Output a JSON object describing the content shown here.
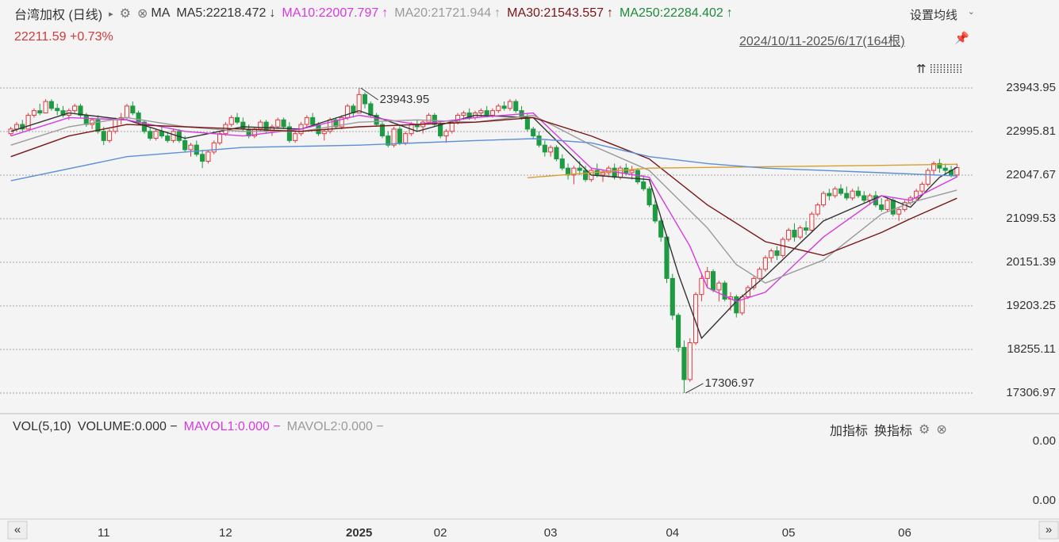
{
  "header": {
    "title": "台湾加权 (日线)",
    "indicator": "MA",
    "settings": "设置均线",
    "price": "22211.59 +0.73%",
    "range": "2024/10/11-2025/6/17(164根)"
  },
  "chart_data": {
    "type": "candlestick",
    "up_color": "#e0393e",
    "down_color": "#1e9a42",
    "xlim": [
      -0.5,
      163.5
    ],
    "xticks": [
      {
        "value": 16,
        "label": "11"
      },
      {
        "value": 37,
        "label": "12"
      },
      {
        "value": 60,
        "label": "2025"
      },
      {
        "value": 74,
        "label": "02"
      },
      {
        "value": 93,
        "label": "03"
      },
      {
        "value": 114,
        "label": "04"
      },
      {
        "value": 134,
        "label": "05"
      },
      {
        "value": 154,
        "label": "06"
      }
    ],
    "ylim": [
      16893.2,
      24823.2
    ],
    "yticks": [
      23943.95,
      22995.81,
      22047.67,
      21099.53,
      20151.39,
      19203.25,
      18255.11,
      17306.97
    ],
    "grid": true,
    "ohlc": [
      [
        22950,
        23100,
        22900,
        23050
      ],
      [
        23050,
        23200,
        23000,
        23150
      ],
      [
        23150,
        23250,
        23000,
        23050
      ],
      [
        23050,
        23400,
        23050,
        23350
      ],
      [
        23350,
        23500,
        23300,
        23450
      ],
      [
        23450,
        23600,
        23350,
        23400
      ],
      [
        23400,
        23700,
        23400,
        23650
      ],
      [
        23650,
        23700,
        23450,
        23500
      ],
      [
        23500,
        23600,
        23350,
        23450
      ],
      [
        23450,
        23550,
        23300,
        23350
      ],
      [
        23350,
        23500,
        23250,
        23450
      ],
      [
        23450,
        23600,
        23400,
        23550
      ],
      [
        23550,
        23600,
        23300,
        23350
      ],
      [
        23350,
        23400,
        23100,
        23150
      ],
      [
        23150,
        23300,
        23050,
        23250
      ],
      [
        23250,
        23350,
        22950,
        23000
      ],
      [
        23000,
        23100,
        22700,
        22800
      ],
      [
        22800,
        23050,
        22750,
        23000
      ],
      [
        23000,
        23300,
        22950,
        23250
      ],
      [
        23250,
        23400,
        23150,
        23300
      ],
      [
        23300,
        23600,
        23250,
        23550
      ],
      [
        23550,
        23650,
        23350,
        23400
      ],
      [
        23400,
        23450,
        23150,
        23200
      ],
      [
        23200,
        23250,
        22950,
        23000
      ],
      [
        23000,
        23100,
        22800,
        22850
      ],
      [
        22850,
        23050,
        22800,
        23000
      ],
      [
        23000,
        23100,
        22850,
        22900
      ],
      [
        22900,
        23000,
        22750,
        22800
      ],
      [
        22800,
        23050,
        22750,
        23000
      ],
      [
        23000,
        23050,
        22750,
        22800
      ],
      [
        22800,
        22900,
        22550,
        22600
      ],
      [
        22600,
        22750,
        22450,
        22700
      ],
      [
        22700,
        22800,
        22450,
        22500
      ],
      [
        22500,
        22600,
        22200,
        22350
      ],
      [
        22350,
        22600,
        22300,
        22550
      ],
      [
        22550,
        22800,
        22500,
        22750
      ],
      [
        22750,
        23000,
        22700,
        22950
      ],
      [
        22950,
        23200,
        22900,
        23150
      ],
      [
        23150,
        23350,
        23100,
        23300
      ],
      [
        23300,
        23400,
        23150,
        23200
      ],
      [
        23200,
        23300,
        23000,
        23050
      ],
      [
        23050,
        23150,
        22850,
        22900
      ],
      [
        22900,
        23100,
        22850,
        23050
      ],
      [
        23050,
        23250,
        23000,
        23200
      ],
      [
        23200,
        23250,
        22950,
        23000
      ],
      [
        23000,
        23150,
        22900,
        23100
      ],
      [
        23100,
        23300,
        23050,
        23250
      ],
      [
        23250,
        23300,
        23050,
        23100
      ],
      [
        23100,
        23200,
        22750,
        22800
      ],
      [
        22800,
        23000,
        22750,
        22950
      ],
      [
        22950,
        23200,
        22900,
        23150
      ],
      [
        23150,
        23350,
        23100,
        23300
      ],
      [
        23300,
        23400,
        23100,
        23150
      ],
      [
        23150,
        23200,
        22900,
        22950
      ],
      [
        22950,
        23050,
        22800,
        23000
      ],
      [
        23000,
        23300,
        22950,
        23250
      ],
      [
        23250,
        23300,
        23050,
        23100
      ],
      [
        23100,
        23350,
        23050,
        23300
      ],
      [
        23300,
        23600,
        23250,
        23550
      ],
      [
        23550,
        23600,
        23300,
        23400
      ],
      [
        23400,
        23943.95,
        23400,
        23800
      ],
      [
        23800,
        23850,
        23500,
        23600
      ],
      [
        23600,
        23650,
        23300,
        23350
      ],
      [
        23350,
        23400,
        23100,
        23150
      ],
      [
        23150,
        23200,
        22850,
        22900
      ],
      [
        22900,
        23000,
        22650,
        22700
      ],
      [
        22700,
        23100,
        22650,
        23050
      ],
      [
        23050,
        23150,
        22700,
        22750
      ],
      [
        22750,
        23000,
        22700,
        22950
      ],
      [
        22950,
        23200,
        22900,
        23150
      ],
      [
        23150,
        23250,
        23000,
        23100
      ],
      [
        23100,
        23250,
        22950,
        23200
      ],
      [
        23200,
        23400,
        23150,
        23350
      ],
      [
        23350,
        23400,
        23100,
        23150
      ],
      [
        23150,
        23200,
        22850,
        22900
      ],
      [
        22900,
        23050,
        22750,
        23000
      ],
      [
        23000,
        23250,
        22950,
        23200
      ],
      [
        23200,
        23400,
        23150,
        23350
      ],
      [
        23350,
        23450,
        23250,
        23400
      ],
      [
        23400,
        23500,
        23250,
        23300
      ],
      [
        23300,
        23450,
        23250,
        23400
      ],
      [
        23400,
        23500,
        23300,
        23450
      ],
      [
        23450,
        23550,
        23300,
        23350
      ],
      [
        23350,
        23500,
        23300,
        23450
      ],
      [
        23450,
        23600,
        23400,
        23550
      ],
      [
        23550,
        23650,
        23450,
        23500
      ],
      [
        23500,
        23700,
        23450,
        23650
      ],
      [
        23650,
        23700,
        23400,
        23450
      ],
      [
        23450,
        23550,
        23250,
        23300
      ],
      [
        23300,
        23400,
        23000,
        23050
      ],
      [
        23050,
        23100,
        22850,
        22900
      ],
      [
        22900,
        23000,
        22650,
        22700
      ],
      [
        22700,
        22800,
        22450,
        22550
      ],
      [
        22550,
        22700,
        22450,
        22650
      ],
      [
        22650,
        22700,
        22350,
        22400
      ],
      [
        22400,
        22500,
        22150,
        22200
      ],
      [
        22200,
        22300,
        21950,
        22050
      ],
      [
        22050,
        22250,
        21850,
        22200
      ],
      [
        22200,
        22350,
        22050,
        22150
      ],
      [
        22150,
        22250,
        21900,
        21950
      ],
      [
        21950,
        22200,
        21900,
        22150
      ],
      [
        22150,
        22300,
        22000,
        22050
      ],
      [
        22050,
        22150,
        21900,
        22100
      ],
      [
        22100,
        22250,
        22000,
        22200
      ],
      [
        22200,
        22300,
        21950,
        22000
      ],
      [
        22000,
        22250,
        21950,
        22200
      ],
      [
        22200,
        22300,
        22050,
        22100
      ],
      [
        22100,
        22250,
        21950,
        22150
      ],
      [
        22150,
        22200,
        21850,
        21900
      ],
      [
        21900,
        22050,
        21700,
        21750
      ],
      [
        21750,
        21800,
        21350,
        21400
      ],
      [
        21400,
        21500,
        21000,
        21050
      ],
      [
        21050,
        21100,
        20600,
        20700
      ],
      [
        20700,
        20750,
        19700,
        19800
      ],
      [
        19800,
        19900,
        18900,
        19000
      ],
      [
        19000,
        19050,
        18200,
        18300
      ],
      [
        18300,
        18450,
        17306.97,
        17600
      ],
      [
        17600,
        18500,
        17550,
        18400
      ],
      [
        18400,
        19500,
        18350,
        19450
      ],
      [
        19450,
        19900,
        19300,
        19800
      ],
      [
        19800,
        20050,
        19600,
        19950
      ],
      [
        19950,
        20000,
        19500,
        19550
      ],
      [
        19550,
        19750,
        19300,
        19700
      ],
      [
        19700,
        19750,
        19300,
        19350
      ],
      [
        19350,
        19500,
        19100,
        19400
      ],
      [
        19400,
        19450,
        18950,
        19050
      ],
      [
        19050,
        19450,
        19000,
        19400
      ],
      [
        19400,
        19650,
        19350,
        19600
      ],
      [
        19600,
        19850,
        19550,
        19800
      ],
      [
        19800,
        20050,
        19750,
        20000
      ],
      [
        20000,
        20300,
        19950,
        20250
      ],
      [
        20250,
        20450,
        20150,
        20400
      ],
      [
        20400,
        20500,
        20200,
        20300
      ],
      [
        20300,
        20700,
        20250,
        20650
      ],
      [
        20650,
        20900,
        20600,
        20850
      ],
      [
        20850,
        21000,
        20600,
        20700
      ],
      [
        20700,
        20950,
        20650,
        20900
      ],
      [
        20900,
        21050,
        20750,
        20850
      ],
      [
        20850,
        21250,
        20800,
        21200
      ],
      [
        21200,
        21450,
        21150,
        21400
      ],
      [
        21400,
        21700,
        21350,
        21650
      ],
      [
        21650,
        21750,
        21500,
        21600
      ],
      [
        21600,
        21800,
        21550,
        21750
      ],
      [
        21750,
        21850,
        21600,
        21650
      ],
      [
        21650,
        21800,
        21500,
        21550
      ],
      [
        21550,
        21750,
        21500,
        21700
      ],
      [
        21700,
        21800,
        21550,
        21600
      ],
      [
        21600,
        21700,
        21450,
        21500
      ],
      [
        21500,
        21650,
        21400,
        21600
      ],
      [
        21600,
        21700,
        21350,
        21400
      ],
      [
        21400,
        21550,
        21250,
        21300
      ],
      [
        21300,
        21550,
        21250,
        21500
      ],
      [
        21500,
        21550,
        21150,
        21200
      ],
      [
        21200,
        21350,
        21050,
        21300
      ],
      [
        21300,
        21500,
        21250,
        21450
      ],
      [
        21450,
        21600,
        21400,
        21550
      ],
      [
        21550,
        21750,
        21500,
        21700
      ],
      [
        21700,
        21900,
        21650,
        21850
      ],
      [
        21850,
        22200,
        21800,
        22150
      ],
      [
        22150,
        22350,
        22050,
        22300
      ],
      [
        22300,
        22400,
        22100,
        22200
      ],
      [
        22200,
        22300,
        22050,
        22150
      ],
      [
        22150,
        22250,
        22000,
        22050
      ],
      [
        22050,
        22300,
        22000,
        22211.59
      ]
    ],
    "series": [
      {
        "legend": "MA5:22218.472",
        "trend": "↓",
        "color": "#333333",
        "x": [
          0,
          10,
          20,
          30,
          40,
          50,
          60,
          70,
          80,
          90,
          100,
          110,
          115,
          119,
          125,
          130,
          140,
          150,
          155,
          160,
          163
        ],
        "values": [
          23000,
          23400,
          23250,
          22850,
          23100,
          23050,
          23450,
          23000,
          23350,
          23300,
          22050,
          21950,
          19900,
          18500,
          19300,
          19850,
          21050,
          21600,
          21350,
          22000,
          22218
        ]
      },
      {
        "legend": "MA10:22007.797",
        "trend": "↑",
        "color": "#d63adf",
        "x": [
          0,
          10,
          20,
          30,
          40,
          50,
          60,
          70,
          80,
          90,
          100,
          110,
          117,
          120,
          125,
          130,
          140,
          150,
          155,
          163
        ],
        "values": [
          22900,
          23300,
          23250,
          23000,
          22900,
          23050,
          23350,
          23150,
          23300,
          23400,
          22200,
          22000,
          20500,
          19600,
          19300,
          19500,
          20700,
          21600,
          21500,
          22008
        ]
      },
      {
        "legend": "MA20:21721.944",
        "trend": "↑",
        "color": "#9a9a9a",
        "x": [
          0,
          10,
          20,
          30,
          40,
          50,
          60,
          70,
          80,
          90,
          100,
          110,
          120,
          125,
          130,
          140,
          150,
          155,
          163
        ],
        "values": [
          22700,
          23100,
          23300,
          23100,
          23000,
          23000,
          23200,
          23250,
          23200,
          23350,
          22700,
          22150,
          20900,
          20100,
          19700,
          20200,
          21200,
          21450,
          21722
        ]
      },
      {
        "legend": "MA30:21543.557",
        "trend": "↑",
        "color": "#7a1515",
        "x": [
          0,
          10,
          20,
          30,
          40,
          50,
          60,
          70,
          80,
          90,
          100,
          110,
          120,
          130,
          140,
          150,
          155,
          163
        ],
        "values": [
          22450,
          22900,
          23150,
          23100,
          23050,
          23000,
          23100,
          23150,
          23200,
          23300,
          22900,
          22400,
          21400,
          20600,
          20300,
          20800,
          21100,
          21544
        ]
      },
      {
        "legend": "MA250:22284.402",
        "trend": "↑",
        "color": "#d4a030",
        "text_color": "#1e8a3a",
        "x": [
          89,
          110,
          130,
          150,
          163
        ],
        "values": [
          21990,
          22200,
          22230,
          22260,
          22284
        ]
      },
      {
        "color": "#5b8fd6",
        "x": [
          0,
          20,
          40,
          60,
          80,
          90,
          100,
          110,
          120,
          130,
          140,
          150,
          163
        ],
        "values": [
          21925,
          22450,
          22650,
          22700,
          22800,
          22840,
          22750,
          22450,
          22300,
          22200,
          22150,
          22100,
          22030
        ]
      }
    ],
    "annotations": [
      {
        "index": 60,
        "value": 23943.95,
        "label": "23943.95"
      },
      {
        "index": 116,
        "value": 17306.97,
        "label": "17306.97"
      }
    ]
  },
  "volume_panel": {
    "title": "VOL(5,10)",
    "items": [
      {
        "text": "VOLUME:0.000 −",
        "color": "#333333"
      },
      {
        "text": "MAVOL1:0.000 −",
        "color": "#d63adf"
      },
      {
        "text": "MAVOL2:0.000 −",
        "color": "#9a9a9a"
      }
    ],
    "buttons": [
      "加指标",
      "换指标"
    ],
    "axis_labels": [
      "0.00",
      "0.00"
    ]
  }
}
